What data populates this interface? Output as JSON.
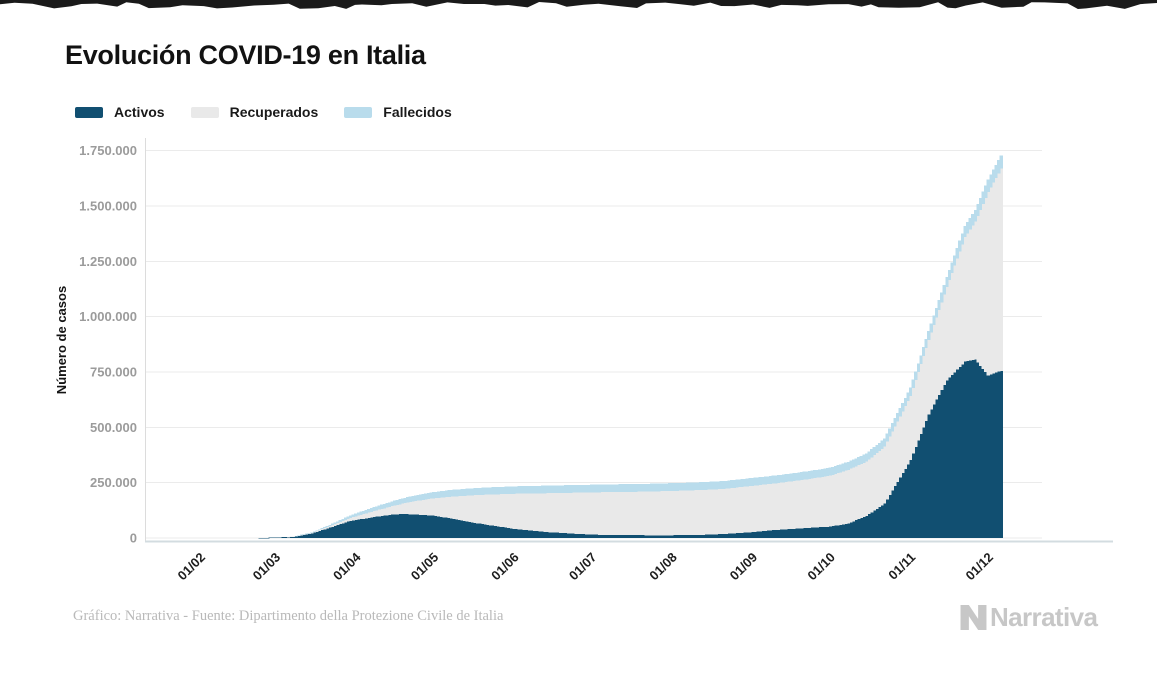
{
  "page": {
    "background": "#ffffff",
    "torn_edge_color": "#1a1a1a"
  },
  "title": "Evolución COVID-19 en Italia",
  "legend": [
    {
      "label": "Activos",
      "color": "#114f71"
    },
    {
      "label": "Recuperados",
      "color": "#e9e9e9"
    },
    {
      "label": "Fallecidos",
      "color": "#b9dcec"
    }
  ],
  "footer": {
    "source": "Gráfico: Narrativa - Fuente: Dipartimento della Protezione Civile de Italia",
    "brand": "Narrativa"
  },
  "chart_data": {
    "type": "area",
    "stacked": true,
    "title": "Evolución COVID-19 en Italia",
    "xlabel": "",
    "ylabel": "Número de casos",
    "ylim": [
      0,
      1750000
    ],
    "grid": "horizontal",
    "legend_position": "top-left",
    "series_order_bottom_to_top": [
      "Activos",
      "Recuperados",
      "Fallecidos"
    ],
    "colors": {
      "Activos": "#114f71",
      "Recuperados": "#e9e9e9",
      "Fallecidos": "#b9dcec"
    },
    "y_ticks": {
      "values": [
        0,
        250000,
        500000,
        750000,
        1000000,
        1250000,
        1500000,
        1750000
      ],
      "labels": [
        "0",
        "250.000",
        "500.000",
        "750.000",
        "1.000.000",
        "1.250.000",
        "1.500.000",
        "1.750.000"
      ]
    },
    "x_ticks": {
      "days": [
        0,
        29,
        60,
        90,
        121,
        151,
        182,
        213,
        243,
        274,
        304
      ],
      "labels": [
        "01/02",
        "01/03",
        "01/04",
        "01/05",
        "01/06",
        "01/07",
        "01/08",
        "01/09",
        "01/10",
        "01/11",
        "01/12"
      ]
    },
    "x_range_days": [
      0,
      309
    ],
    "anchors": {
      "dates": [
        "01/02",
        "21/02",
        "01/03",
        "08/03",
        "15/03",
        "22/03",
        "29/03",
        "01/04",
        "08/04",
        "15/04",
        "19/04",
        "24/04",
        "01/05",
        "08/05",
        "15/05",
        "22/05",
        "01/06",
        "08/06",
        "15/06",
        "22/06",
        "01/07",
        "08/07",
        "15/07",
        "22/07",
        "01/08",
        "08/08",
        "15/08",
        "22/08",
        "01/09",
        "08/09",
        "15/09",
        "22/09",
        "01/10",
        "08/10",
        "15/10",
        "22/10",
        "01/11",
        "08/11",
        "15/11",
        "22/11",
        "26/11",
        "01/12",
        "06/12"
      ],
      "days": [
        0,
        20,
        29,
        36,
        43,
        50,
        57,
        60,
        67,
        74,
        78,
        83,
        90,
        97,
        104,
        111,
        121,
        128,
        135,
        142,
        151,
        158,
        165,
        172,
        182,
        189,
        196,
        203,
        213,
        220,
        227,
        234,
        243,
        250,
        257,
        264,
        274,
        281,
        288,
        295,
        299,
        304,
        309
      ],
      "series": {
        "Activos": [
          0,
          17,
          1577,
          6387,
          20603,
          46638,
          73880,
          80572,
          95262,
          105418,
          108257,
          106527,
          100943,
          87961,
          72070,
          59322,
          41462,
          32872,
          25909,
          20972,
          15255,
          13459,
          12919,
          12404,
          12422,
          13561,
          15089,
          18438,
          26754,
          34734,
          39712,
          45489,
          51263,
          65952,
          99266,
          155442,
          351386,
          558967,
          712490,
          796849,
          805947,
          734503,
          755306
        ],
        "Recuperados": [
          0,
          1,
          83,
          622,
          2335,
          7024,
          13030,
          16847,
          26491,
          38092,
          47055,
          60498,
          78249,
          99023,
          120205,
          136720,
          158355,
          168646,
          176370,
          183126,
          190717,
          193978,
          195441,
          197162,
          200229,
          201323,
          202923,
          204506,
          209027,
          209610,
          214645,
          219670,
          230320,
          241690,
          245964,
          257374,
          289426,
          335074,
          420810,
          562196,
          622899,
          828428,
          913494
        ],
        "Fallecidos": [
          0,
          1,
          34,
          366,
          1809,
          5476,
          10779,
          13155,
          17669,
          21645,
          23660,
          25969,
          28236,
          30201,
          31610,
          32616,
          33475,
          33964,
          34405,
          34657,
          34788,
          34914,
          34945,
          35073,
          35146,
          35190,
          35396,
          35430,
          35497,
          35563,
          35633,
          35738,
          35918,
          36083,
          36372,
          36832,
          38618,
          41063,
          45229,
          49823,
          52028,
          57045,
          60078
        ]
      }
    }
  }
}
